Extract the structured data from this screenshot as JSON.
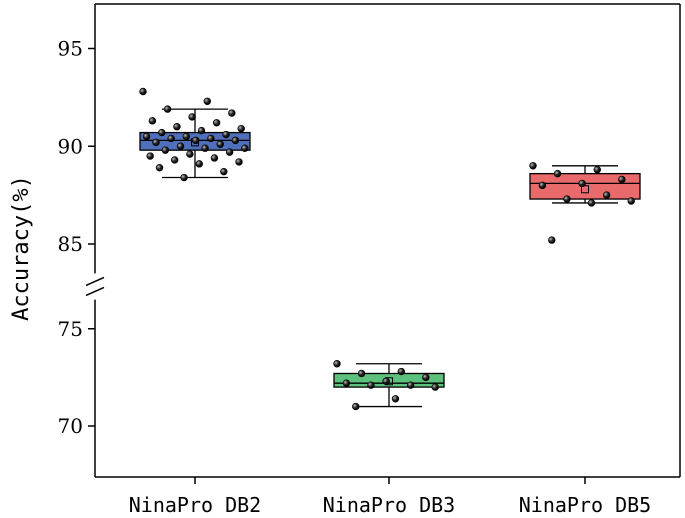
{
  "chart_data": {
    "type": "box",
    "ylabel": "Accuracy(%)",
    "y_axis_break": [
      76.5,
      83.5
    ],
    "ylim": [
      67.5,
      97.5
    ],
    "y_ticks": [
      70,
      75,
      85,
      90,
      95
    ],
    "categories": [
      "NinaPro DB2",
      "NinaPro DB3",
      "NinaPro DB5"
    ],
    "groups": [
      {
        "name": "NinaPro DB2",
        "color": "#4f6fba",
        "q1": 89.8,
        "median": 90.3,
        "q3": 90.7,
        "mean": 90.2,
        "whisker_low": 88.4,
        "whisker_high": 91.9,
        "points": [
          92.8,
          92.3,
          91.9,
          91.7,
          91.5,
          91.3,
          91.2,
          91.0,
          90.9,
          90.8,
          90.7,
          90.6,
          90.5,
          90.5,
          90.4,
          90.4,
          90.3,
          90.3,
          90.2,
          90.1,
          90.0,
          89.9,
          89.9,
          89.8,
          89.7,
          89.6,
          89.5,
          89.4,
          89.3,
          89.2,
          89.1,
          88.9,
          88.7,
          88.4
        ]
      },
      {
        "name": "NinaPro DB3",
        "color": "#5cc17c",
        "q1": 72.0,
        "median": 72.2,
        "q3": 72.7,
        "mean": 72.3,
        "whisker_low": 71.0,
        "whisker_high": 73.2,
        "points": [
          73.2,
          72.8,
          72.7,
          72.5,
          72.3,
          72.2,
          72.1,
          72.1,
          72.0,
          71.4,
          71.0
        ]
      },
      {
        "name": "NinaPro DB5",
        "color": "#e96a6a",
        "q1": 87.3,
        "median": 88.1,
        "q3": 88.6,
        "mean": 87.8,
        "whisker_low": 87.1,
        "whisker_high": 89.0,
        "points": [
          89.0,
          88.8,
          88.6,
          88.3,
          88.1,
          88.0,
          87.5,
          87.3,
          87.2,
          87.1,
          85.2
        ]
      }
    ]
  }
}
